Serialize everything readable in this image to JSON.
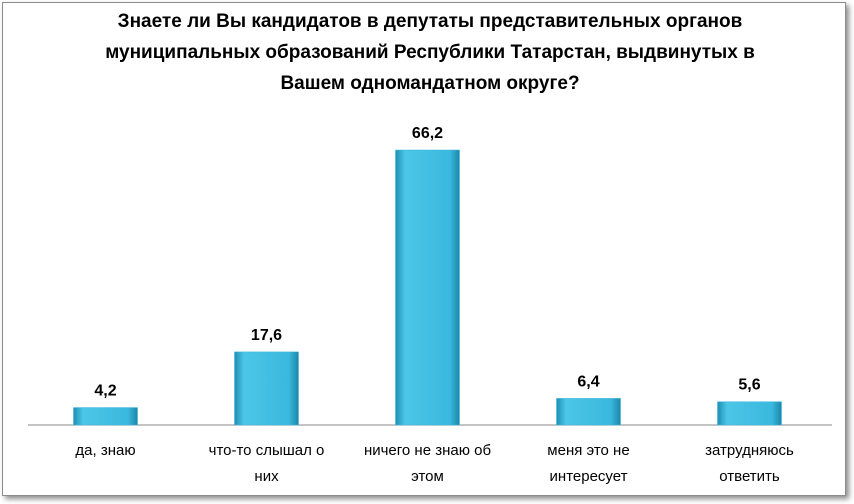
{
  "chart_data": {
    "type": "bar",
    "title": "Знаете ли Вы кандидатов в депутаты представительных органов муниципальных образований Республики Татарстан, выдвинутых в Вашем одномандатном округе?",
    "categories": [
      "да, знаю",
      "что-то слышал о них",
      "ничего не знаю об этом",
      "меня это не интересует",
      "затрудняюсь ответить"
    ],
    "values": [
      4.2,
      17.6,
      66.2,
      6.4,
      5.6
    ],
    "value_labels": [
      "4,2",
      "17,6",
      "66,2",
      "6,4",
      "5,6"
    ],
    "color": "#38b6dc"
  }
}
